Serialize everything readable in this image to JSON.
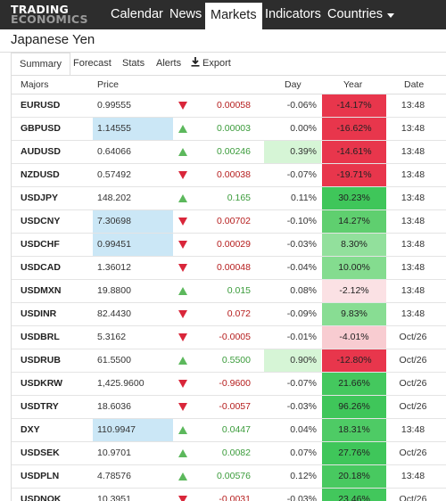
{
  "brand": {
    "line1": "TRADING",
    "line2": "ECONOMICS"
  },
  "nav": [
    "Calendar",
    "News",
    "Markets",
    "Indicators",
    "Countries"
  ],
  "nav_active": "Markets",
  "page_title": "Japanese Yen",
  "tabs": [
    "Summary",
    "Forecast",
    "Stats",
    "Alerts",
    "Export"
  ],
  "columns": {
    "symbol": "Majors",
    "price": "Price",
    "day": "Day",
    "year": "Year",
    "date": "Date"
  },
  "colors": {
    "nav_bg": "#2d2d2d",
    "up_arrow": "#5cb85c",
    "down_arrow": "#d9263a",
    "price_highlight": "#cbe7f6",
    "day_highlight": "#d6f5d6"
  },
  "rows": [
    {
      "symbol": "EURUSD",
      "price": "0.99555",
      "price_hl": false,
      "dir": "down",
      "change": "0.00058",
      "day": "-0.06%",
      "day_hl": false,
      "year": "-14.17%",
      "year_bg": "#e8364c",
      "date": "13:48"
    },
    {
      "symbol": "GBPUSD",
      "price": "1.14555",
      "price_hl": true,
      "dir": "up",
      "change": "0.00003",
      "day": "0.00%",
      "day_hl": false,
      "year": "-16.62%",
      "year_bg": "#e8364c",
      "date": "13:48"
    },
    {
      "symbol": "AUDUSD",
      "price": "0.64066",
      "price_hl": false,
      "dir": "up",
      "change": "0.00246",
      "day": "0.39%",
      "day_hl": true,
      "year": "-14.61%",
      "year_bg": "#e8364c",
      "date": "13:48"
    },
    {
      "symbol": "NZDUSD",
      "price": "0.57492",
      "price_hl": false,
      "dir": "down",
      "change": "0.00038",
      "day": "-0.07%",
      "day_hl": false,
      "year": "-19.71%",
      "year_bg": "#e8364c",
      "date": "13:48"
    },
    {
      "symbol": "USDJPY",
      "price": "148.202",
      "price_hl": false,
      "dir": "up",
      "change": "0.165",
      "day": "0.11%",
      "day_hl": false,
      "year": "30.23%",
      "year_bg": "#3fc65a",
      "date": "13:48"
    },
    {
      "symbol": "USDCNY",
      "price": "7.30698",
      "price_hl": true,
      "dir": "down",
      "change": "0.00702",
      "day": "-0.10%",
      "day_hl": false,
      "year": "14.27%",
      "year_bg": "#5fcf6f",
      "date": "13:48"
    },
    {
      "symbol": "USDCHF",
      "price": "0.99451",
      "price_hl": true,
      "dir": "down",
      "change": "0.00029",
      "day": "-0.03%",
      "day_hl": false,
      "year": "8.30%",
      "year_bg": "#92e09c",
      "date": "13:48"
    },
    {
      "symbol": "USDCAD",
      "price": "1.36012",
      "price_hl": false,
      "dir": "down",
      "change": "0.00048",
      "day": "-0.04%",
      "day_hl": false,
      "year": "10.00%",
      "year_bg": "#84dc8f",
      "date": "13:48"
    },
    {
      "symbol": "USDMXN",
      "price": "19.8800",
      "price_hl": false,
      "dir": "up",
      "change": "0.015",
      "day": "0.08%",
      "day_hl": false,
      "year": "-2.12%",
      "year_bg": "#fbe1e4",
      "date": "13:48"
    },
    {
      "symbol": "USDINR",
      "price": "82.4430",
      "price_hl": false,
      "dir": "down",
      "change": "0.072",
      "day": "-0.09%",
      "day_hl": false,
      "year": "9.83%",
      "year_bg": "#88dd93",
      "date": "13:48"
    },
    {
      "symbol": "USDBRL",
      "price": "5.3162",
      "price_hl": false,
      "dir": "down",
      "change": "-0.0005",
      "day": "-0.01%",
      "day_hl": false,
      "year": "-4.01%",
      "year_bg": "#f8ccd1",
      "date": "Oct/26"
    },
    {
      "symbol": "USDRUB",
      "price": "61.5500",
      "price_hl": false,
      "dir": "up",
      "change": "0.5500",
      "day": "0.90%",
      "day_hl": true,
      "year": "-12.80%",
      "year_bg": "#e8364c",
      "date": "Oct/26"
    },
    {
      "symbol": "USDKRW",
      "price": "1,425.9600",
      "price_hl": false,
      "dir": "down",
      "change": "-0.9600",
      "day": "-0.07%",
      "day_hl": false,
      "year": "21.66%",
      "year_bg": "#44c85e",
      "date": "Oct/26"
    },
    {
      "symbol": "USDTRY",
      "price": "18.6036",
      "price_hl": false,
      "dir": "down",
      "change": "-0.0057",
      "day": "-0.03%",
      "day_hl": false,
      "year": "96.26%",
      "year_bg": "#3fc65a",
      "date": "Oct/26"
    },
    {
      "symbol": "DXY",
      "price": "110.9947",
      "price_hl": true,
      "dir": "up",
      "change": "0.0447",
      "day": "0.04%",
      "day_hl": false,
      "year": "18.31%",
      "year_bg": "#4ecb65",
      "date": "13:48"
    },
    {
      "symbol": "USDSEK",
      "price": "10.9701",
      "price_hl": false,
      "dir": "up",
      "change": "0.0082",
      "day": "0.07%",
      "day_hl": false,
      "year": "27.76%",
      "year_bg": "#3fc65a",
      "date": "Oct/26"
    },
    {
      "symbol": "USDPLN",
      "price": "4.78576",
      "price_hl": false,
      "dir": "up",
      "change": "0.00576",
      "day": "0.12%",
      "day_hl": false,
      "year": "20.18%",
      "year_bg": "#48c960",
      "date": "13:48"
    },
    {
      "symbol": "USDNOK",
      "price": "10.3951",
      "price_hl": false,
      "dir": "down",
      "change": "-0.0031",
      "day": "-0.03%",
      "day_hl": false,
      "year": "23.46%",
      "year_bg": "#42c75c",
      "date": "Oct/26"
    }
  ]
}
